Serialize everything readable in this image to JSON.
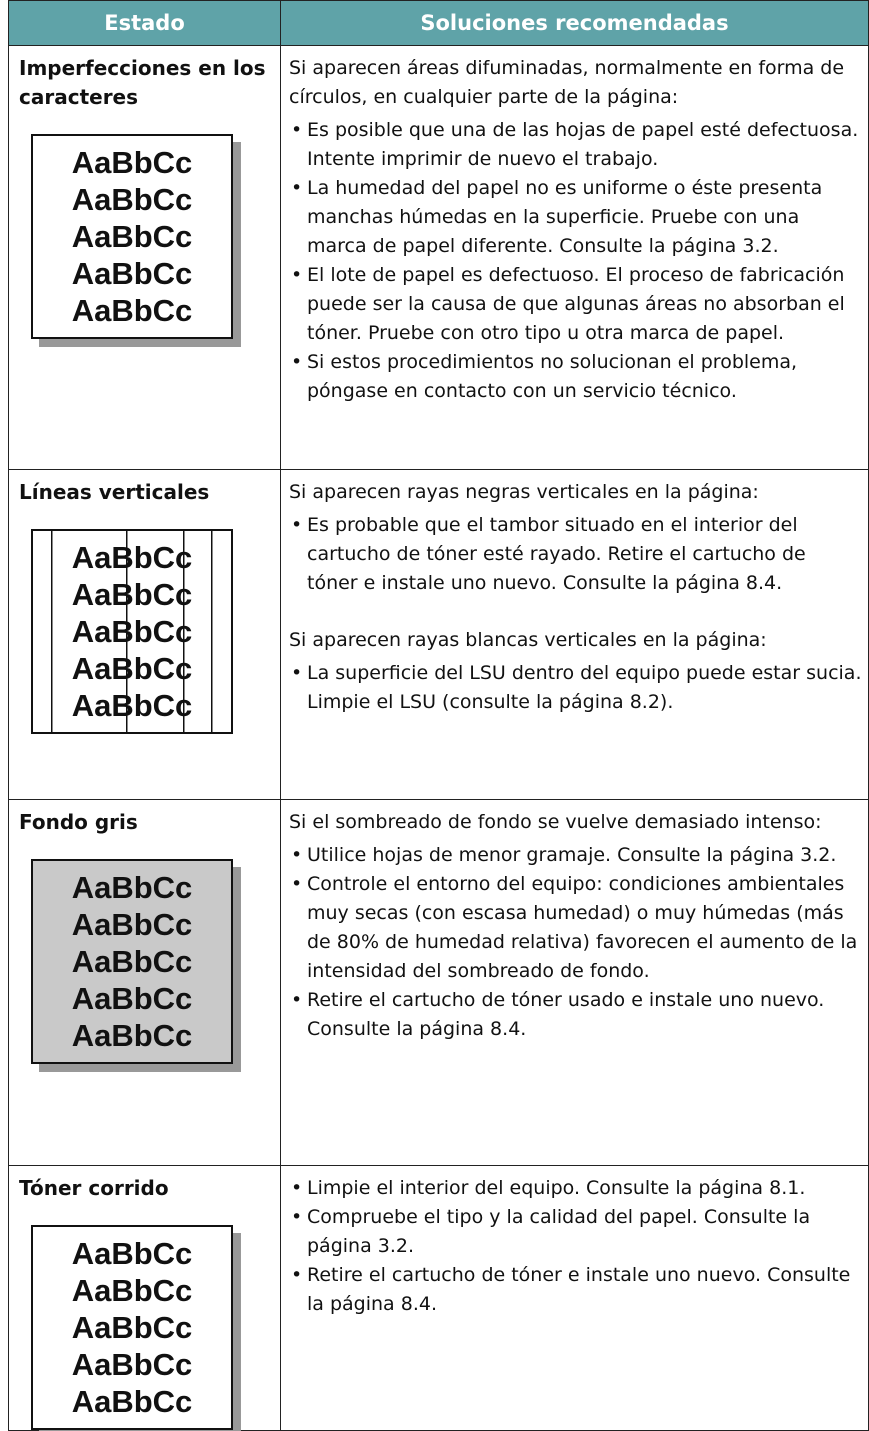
{
  "table": {
    "header": [
      "Estado",
      "Soluciones recomendadas"
    ],
    "rows": [
      {
        "state": "Imperfecciones en los caracteres",
        "sample": [
          "AaBbCc",
          "AaBbCc",
          "AaBbCc",
          "AaBbCc",
          "AaBbCc"
        ],
        "blocks": [
          {
            "intro": "Si aparecen áreas difuminadas, normalmente en forma de círculos, en cualquier parte de la página:",
            "bullets": [
              "Es posible que una de las hojas de papel esté defectuosa. Intente imprimir de nuevo el trabajo.",
              "La humedad del papel no es uniforme o éste presenta manchas húmedas en la superficie. Pruebe con una marca de papel diferente. Consulte la página 3.2.",
              "El lote de papel es defectuoso. El proceso de fabricación puede ser la causa de que algunas áreas no absorban el tóner. Pruebe con otro tipo u otra marca de papel.",
              "Si estos procedimientos no solucionan el problema, póngase en contacto con un servicio técnico."
            ]
          }
        ]
      },
      {
        "state": "Líneas verticales",
        "sample": [
          "AaBbCc",
          "AaBbCc",
          "AaBbCc",
          "AaBbCc",
          "AaBbCc"
        ],
        "blocks": [
          {
            "intro": "Si aparecen rayas negras verticales en la página:",
            "bullets": [
              "Es probable que el tambor situado en el interior del cartucho de tóner esté rayado. Retire el cartucho de tóner e instale uno nuevo. Consulte la página 8.4."
            ]
          },
          {
            "intro": "Si aparecen rayas blancas verticales en la página:",
            "bullets": [
              "La superficie del LSU dentro del equipo puede estar sucia. Limpie el LSU (consulte la página 8.2)."
            ]
          }
        ]
      },
      {
        "state": "Fondo gris",
        "sample": [
          "AaBbCc",
          "AaBbCc",
          "AaBbCc",
          "AaBbCc",
          "AaBbCc"
        ],
        "blocks": [
          {
            "intro": "Si el sombreado de fondo se vuelve demasiado intenso:",
            "bullets": [
              "Utilice hojas de menor gramaje. Consulte la página 3.2.",
              "Controle el entorno del equipo: condiciones ambientales muy secas (con escasa humedad) o muy húmedas (más de 80% de humedad relativa) favorecen el aumento de la intensidad del sombreado de fondo.",
              "Retire el cartucho de tóner usado e instale uno nuevo. Consulte la página 8.4."
            ]
          }
        ]
      },
      {
        "state": "Tóner corrido",
        "sample": [
          "AaBbCc",
          "AaBbCc",
          "AaBbCc",
          "AaBbCc",
          "AaBbCc"
        ],
        "blocks": [
          {
            "bullets": [
              "Limpie el interior del equipo. Consulte la página 8.1.",
              "Compruebe el tipo y la calidad del papel. Consulte la página 3.2.",
              "Retire el cartucho de tóner e instale uno nuevo. Consulte la página 8.4."
            ]
          }
        ]
      }
    ]
  }
}
